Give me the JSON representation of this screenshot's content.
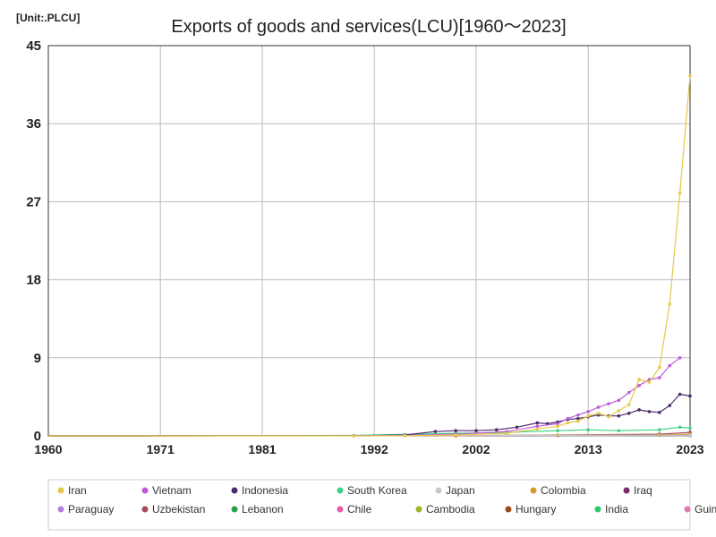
{
  "unit_label": "[Unit:.PLCU]",
  "chart_data": {
    "type": "line",
    "title": "Exports of goods and services(LCU)[1960～2023]",
    "xlabel": "",
    "ylabel": "",
    "xlim": [
      1960,
      2023
    ],
    "ylim": [
      0,
      45
    ],
    "x_ticks": [
      "1960",
      "1971",
      "1981",
      "1992",
      "2002",
      "2013",
      "2023"
    ],
    "y_ticks": [
      "0",
      "9",
      "18",
      "27",
      "36",
      "45"
    ],
    "grid": true,
    "legend_position": "bottom",
    "series": [
      {
        "name": "Iran",
        "color": "#e6c84a",
        "x": [
          1960,
          1970,
          1980,
          1990,
          1995,
          2000,
          2005,
          2008,
          2010,
          2011,
          2012,
          2013,
          2014,
          2015,
          2016,
          2017,
          2018,
          2019,
          2020,
          2021,
          2022,
          2023
        ],
        "y": [
          0,
          0,
          0,
          0,
          0.02,
          0.1,
          0.3,
          0.8,
          1.1,
          1.5,
          1.7,
          2.3,
          2.6,
          2.2,
          2.9,
          3.6,
          6.5,
          6.2,
          7.9,
          15.2,
          28,
          41.5
        ]
      },
      {
        "name": "Vietnam",
        "color": "#c05ad8",
        "x": [
          1960,
          1990,
          1995,
          2000,
          2005,
          2008,
          2010,
          2011,
          2012,
          2013,
          2014,
          2015,
          2016,
          2017,
          2018,
          2019,
          2020,
          2021,
          2022
        ],
        "y": [
          0,
          0.01,
          0.05,
          0.2,
          0.5,
          1.1,
          1.4,
          2.0,
          2.4,
          2.8,
          3.3,
          3.7,
          4.1,
          5.0,
          5.8,
          6.5,
          6.7,
          8.1,
          9.0
        ]
      },
      {
        "name": "Indonesia",
        "color": "#4a2c6a",
        "x": [
          1960,
          1990,
          1995,
          1998,
          2000,
          2002,
          2004,
          2006,
          2008,
          2009,
          2010,
          2011,
          2012,
          2013,
          2014,
          2015,
          2016,
          2017,
          2018,
          2019,
          2020,
          2021,
          2022,
          2023
        ],
        "y": [
          0,
          0.02,
          0.1,
          0.5,
          0.6,
          0.6,
          0.7,
          1.0,
          1.5,
          1.4,
          1.6,
          1.9,
          2.0,
          2.2,
          2.4,
          2.3,
          2.3,
          2.6,
          3.0,
          2.8,
          2.7,
          3.5,
          4.8,
          4.6
        ]
      },
      {
        "name": "South Korea",
        "color": "#3fd18a",
        "x": [
          1960,
          1990,
          2000,
          2005,
          2010,
          2013,
          2016,
          2020,
          2022,
          2023
        ],
        "y": [
          0,
          0.05,
          0.3,
          0.4,
          0.6,
          0.7,
          0.6,
          0.7,
          1.0,
          0.9
        ]
      },
      {
        "name": "Japan",
        "color": "#c8c8c8",
        "x": [
          1960,
          2023
        ],
        "y": [
          0,
          0.08
        ]
      },
      {
        "name": "Colombia",
        "color": "#d49a2a",
        "x": [
          1960,
          2000,
          2010,
          2020,
          2023
        ],
        "y": [
          0,
          0.03,
          0.08,
          0.1,
          0.2
        ]
      },
      {
        "name": "Iraq",
        "color": "#7a2a6a",
        "x": [
          1960,
          2000,
          2010,
          2020,
          2023
        ],
        "y": [
          0,
          0.01,
          0.05,
          0.08,
          0.15
        ]
      },
      {
        "name": "Paraguay",
        "color": "#b07ee0",
        "x": [
          1960,
          2023
        ],
        "y": [
          0,
          0.05
        ]
      },
      {
        "name": "Uzbekistan",
        "color": "#a84a5a",
        "x": [
          1960,
          2000,
          2020,
          2023
        ],
        "y": [
          0,
          0.01,
          0.2,
          0.4
        ]
      },
      {
        "name": "Lebanon",
        "color": "#2e9e4a",
        "x": [
          1960,
          2023
        ],
        "y": [
          0,
          0.03
        ]
      },
      {
        "name": "Chile",
        "color": "#e85aa8",
        "x": [
          1960,
          2023
        ],
        "y": [
          0,
          0.06
        ]
      },
      {
        "name": "Cambodia",
        "color": "#9ab82a",
        "x": [
          1960,
          2023
        ],
        "y": [
          0,
          0.05
        ]
      },
      {
        "name": "Hungary",
        "color": "#9a4a1a",
        "x": [
          1960,
          2023
        ],
        "y": [
          0,
          0.04
        ]
      },
      {
        "name": "India",
        "color": "#2ec86a",
        "x": [
          1960,
          2023
        ],
        "y": [
          0,
          0.03
        ]
      },
      {
        "name": "Guinea",
        "color": "#e07ab0",
        "x": [
          1960,
          2023
        ],
        "y": [
          0,
          0.02
        ]
      }
    ]
  }
}
